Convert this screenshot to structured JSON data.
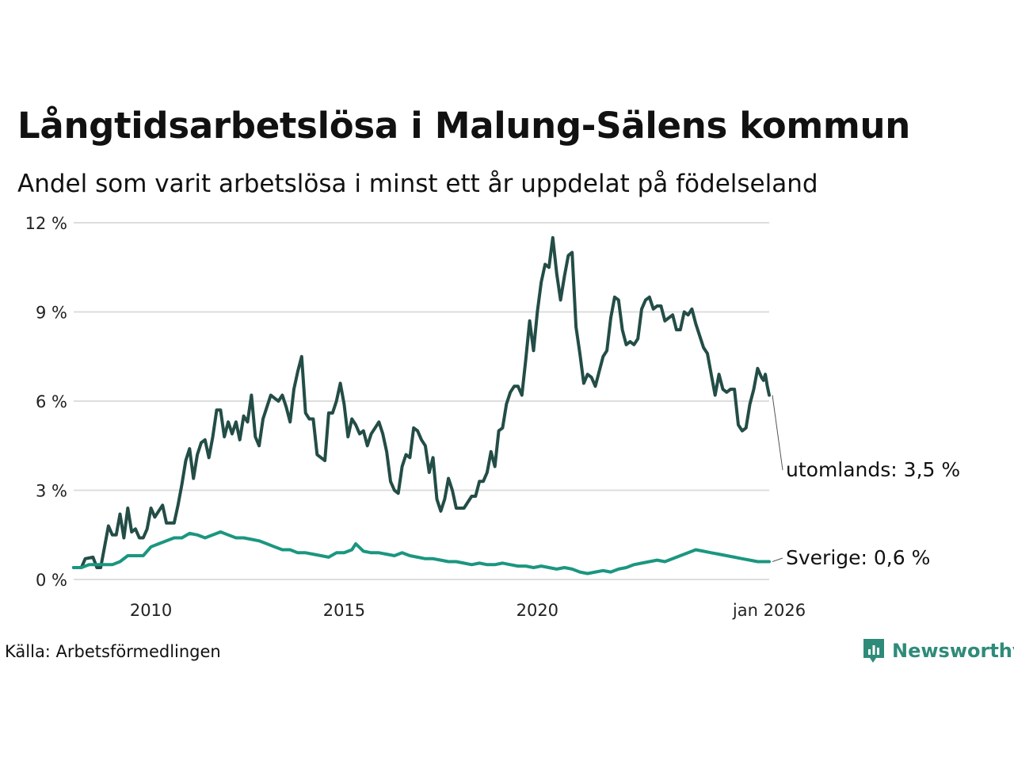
{
  "title": "Långtidsarbetslösa i Malung-Sälens kommun",
  "subtitle": "Andel som varit arbetslösa i minst ett år uppdelat på födelseland",
  "source": "Källa: Arbetsförmedlingen",
  "brand": {
    "name": "Newsworthy",
    "color": "#2e8b7a"
  },
  "chart_data": {
    "type": "line",
    "title": "Långtidsarbetslösa i Malung-Sälens kommun",
    "xlabel": "",
    "ylabel": "",
    "xlim": [
      2008.0,
      2026.0
    ],
    "ylim": [
      0,
      12
    ],
    "x_ticks": [
      2010,
      2015,
      2020,
      2026
    ],
    "x_tick_labels": [
      "2010",
      "2015",
      "2020",
      "jan 2026"
    ],
    "y_ticks": [
      0,
      3,
      6,
      9,
      12
    ],
    "y_tick_labels": [
      "0 %",
      "3 %",
      "6 %",
      "9 %",
      "12 %"
    ],
    "grid": true,
    "series": [
      {
        "name": "utomlands",
        "end_label": "utomlands: 3,5 %",
        "color": "#234d46",
        "points": [
          [
            2008.0,
            0.4
          ],
          [
            2008.2,
            0.4
          ],
          [
            2008.3,
            0.7
          ],
          [
            2008.5,
            0.75
          ],
          [
            2008.6,
            0.4
          ],
          [
            2008.7,
            0.4
          ],
          [
            2008.9,
            1.8
          ],
          [
            2009.0,
            1.5
          ],
          [
            2009.1,
            1.5
          ],
          [
            2009.2,
            2.2
          ],
          [
            2009.3,
            1.4
          ],
          [
            2009.4,
            2.4
          ],
          [
            2009.5,
            1.6
          ],
          [
            2009.6,
            1.7
          ],
          [
            2009.7,
            1.4
          ],
          [
            2009.8,
            1.4
          ],
          [
            2009.9,
            1.7
          ],
          [
            2010.0,
            2.4
          ],
          [
            2010.1,
            2.1
          ],
          [
            2010.3,
            2.5
          ],
          [
            2010.4,
            1.9
          ],
          [
            2010.6,
            1.9
          ],
          [
            2010.7,
            2.5
          ],
          [
            2010.8,
            3.2
          ],
          [
            2010.9,
            4.0
          ],
          [
            2011.0,
            4.4
          ],
          [
            2011.1,
            3.4
          ],
          [
            2011.2,
            4.2
          ],
          [
            2011.3,
            4.6
          ],
          [
            2011.4,
            4.7
          ],
          [
            2011.5,
            4.1
          ],
          [
            2011.6,
            4.8
          ],
          [
            2011.7,
            5.7
          ],
          [
            2011.8,
            5.7
          ],
          [
            2011.9,
            4.8
          ],
          [
            2012.0,
            5.3
          ],
          [
            2012.1,
            4.9
          ],
          [
            2012.2,
            5.3
          ],
          [
            2012.3,
            4.7
          ],
          [
            2012.4,
            5.5
          ],
          [
            2012.5,
            5.3
          ],
          [
            2012.6,
            6.2
          ],
          [
            2012.7,
            4.8
          ],
          [
            2012.8,
            4.5
          ],
          [
            2012.9,
            5.4
          ],
          [
            2013.0,
            5.8
          ],
          [
            2013.1,
            6.2
          ],
          [
            2013.2,
            6.1
          ],
          [
            2013.3,
            6.0
          ],
          [
            2013.4,
            6.2
          ],
          [
            2013.5,
            5.8
          ],
          [
            2013.6,
            5.3
          ],
          [
            2013.7,
            6.4
          ],
          [
            2013.8,
            7.0
          ],
          [
            2013.9,
            7.5
          ],
          [
            2014.0,
            5.6
          ],
          [
            2014.1,
            5.4
          ],
          [
            2014.2,
            5.4
          ],
          [
            2014.3,
            4.2
          ],
          [
            2014.4,
            4.1
          ],
          [
            2014.5,
            4.0
          ],
          [
            2014.6,
            5.6
          ],
          [
            2014.7,
            5.6
          ],
          [
            2014.8,
            6.0
          ],
          [
            2014.9,
            6.6
          ],
          [
            2015.0,
            5.9
          ],
          [
            2015.1,
            4.8
          ],
          [
            2015.2,
            5.4
          ],
          [
            2015.3,
            5.2
          ],
          [
            2015.4,
            4.9
          ],
          [
            2015.5,
            5.0
          ],
          [
            2015.6,
            4.5
          ],
          [
            2015.7,
            4.9
          ],
          [
            2015.8,
            5.1
          ],
          [
            2015.9,
            5.3
          ],
          [
            2016.0,
            4.9
          ],
          [
            2016.1,
            4.3
          ],
          [
            2016.2,
            3.3
          ],
          [
            2016.3,
            3.0
          ],
          [
            2016.4,
            2.9
          ],
          [
            2016.5,
            3.8
          ],
          [
            2016.6,
            4.2
          ],
          [
            2016.7,
            4.1
          ],
          [
            2016.8,
            5.1
          ],
          [
            2016.9,
            5.0
          ],
          [
            2017.0,
            4.7
          ],
          [
            2017.1,
            4.5
          ],
          [
            2017.2,
            3.6
          ],
          [
            2017.3,
            4.1
          ],
          [
            2017.4,
            2.7
          ],
          [
            2017.5,
            2.3
          ],
          [
            2017.6,
            2.7
          ],
          [
            2017.7,
            3.4
          ],
          [
            2017.8,
            3.0
          ],
          [
            2017.9,
            2.4
          ],
          [
            2018.0,
            2.4
          ],
          [
            2018.1,
            2.4
          ],
          [
            2018.3,
            2.8
          ],
          [
            2018.4,
            2.8
          ],
          [
            2018.5,
            3.3
          ],
          [
            2018.6,
            3.3
          ],
          [
            2018.7,
            3.6
          ],
          [
            2018.8,
            4.3
          ],
          [
            2018.9,
            3.8
          ],
          [
            2019.0,
            5.0
          ],
          [
            2019.1,
            5.1
          ],
          [
            2019.2,
            5.9
          ],
          [
            2019.3,
            6.3
          ],
          [
            2019.4,
            6.5
          ],
          [
            2019.5,
            6.5
          ],
          [
            2019.6,
            6.2
          ],
          [
            2019.7,
            7.4
          ],
          [
            2019.8,
            8.7
          ],
          [
            2019.9,
            7.7
          ],
          [
            2020.0,
            9.0
          ],
          [
            2020.1,
            10.0
          ],
          [
            2020.2,
            10.6
          ],
          [
            2020.3,
            10.5
          ],
          [
            2020.4,
            11.5
          ],
          [
            2020.5,
            10.3
          ],
          [
            2020.6,
            9.4
          ],
          [
            2020.7,
            10.2
          ],
          [
            2020.8,
            10.9
          ],
          [
            2020.9,
            11.0
          ],
          [
            2021.0,
            8.5
          ],
          [
            2021.1,
            7.6
          ],
          [
            2021.2,
            6.6
          ],
          [
            2021.3,
            6.9
          ],
          [
            2021.4,
            6.8
          ],
          [
            2021.5,
            6.5
          ],
          [
            2021.6,
            7.0
          ],
          [
            2021.7,
            7.5
          ],
          [
            2021.8,
            7.7
          ],
          [
            2021.9,
            8.8
          ],
          [
            2022.0,
            9.5
          ],
          [
            2022.1,
            9.4
          ],
          [
            2022.2,
            8.4
          ],
          [
            2022.3,
            7.9
          ],
          [
            2022.4,
            8.0
          ],
          [
            2022.5,
            7.9
          ],
          [
            2022.6,
            8.1
          ],
          [
            2022.7,
            9.1
          ],
          [
            2022.8,
            9.4
          ],
          [
            2022.9,
            9.5
          ],
          [
            2023.0,
            9.1
          ],
          [
            2023.1,
            9.2
          ],
          [
            2023.2,
            9.2
          ],
          [
            2023.3,
            8.7
          ],
          [
            2023.4,
            8.8
          ],
          [
            2023.5,
            8.9
          ],
          [
            2023.6,
            8.4
          ],
          [
            2023.7,
            8.4
          ],
          [
            2023.8,
            9.0
          ],
          [
            2023.9,
            8.9
          ],
          [
            2024.0,
            9.1
          ],
          [
            2024.1,
            8.6
          ],
          [
            2024.2,
            8.2
          ],
          [
            2024.3,
            7.8
          ],
          [
            2024.4,
            7.6
          ],
          [
            2024.5,
            6.9
          ],
          [
            2024.6,
            6.2
          ],
          [
            2024.7,
            6.9
          ],
          [
            2024.8,
            6.4
          ],
          [
            2024.9,
            6.3
          ],
          [
            2025.0,
            6.4
          ],
          [
            2025.1,
            6.4
          ],
          [
            2025.2,
            5.2
          ],
          [
            2025.3,
            5.0
          ],
          [
            2025.4,
            5.1
          ],
          [
            2025.5,
            5.9
          ],
          [
            2025.6,
            6.4
          ],
          [
            2025.7,
            7.1
          ],
          [
            2025.8,
            6.8
          ],
          [
            2025.85,
            6.7
          ],
          [
            2025.9,
            6.9
          ],
          [
            2025.95,
            6.5
          ],
          [
            2026.0,
            6.2
          ]
        ]
      },
      {
        "name": "Sverige",
        "end_label": "Sverige: 0,6 %",
        "color": "#1b9680",
        "points": [
          [
            2008.0,
            0.4
          ],
          [
            2008.2,
            0.4
          ],
          [
            2008.4,
            0.5
          ],
          [
            2008.6,
            0.5
          ],
          [
            2008.8,
            0.5
          ],
          [
            2009.0,
            0.5
          ],
          [
            2009.2,
            0.6
          ],
          [
            2009.4,
            0.8
          ],
          [
            2009.6,
            0.8
          ],
          [
            2009.8,
            0.8
          ],
          [
            2010.0,
            1.1
          ],
          [
            2010.2,
            1.2
          ],
          [
            2010.4,
            1.3
          ],
          [
            2010.6,
            1.4
          ],
          [
            2010.8,
            1.4
          ],
          [
            2011.0,
            1.55
          ],
          [
            2011.2,
            1.5
          ],
          [
            2011.4,
            1.4
          ],
          [
            2011.6,
            1.5
          ],
          [
            2011.8,
            1.6
          ],
          [
            2012.0,
            1.5
          ],
          [
            2012.2,
            1.4
          ],
          [
            2012.4,
            1.4
          ],
          [
            2012.6,
            1.35
          ],
          [
            2012.8,
            1.3
          ],
          [
            2013.0,
            1.2
          ],
          [
            2013.2,
            1.1
          ],
          [
            2013.4,
            1.0
          ],
          [
            2013.6,
            1.0
          ],
          [
            2013.8,
            0.9
          ],
          [
            2014.0,
            0.9
          ],
          [
            2014.2,
            0.85
          ],
          [
            2014.4,
            0.8
          ],
          [
            2014.6,
            0.75
          ],
          [
            2014.8,
            0.9
          ],
          [
            2015.0,
            0.9
          ],
          [
            2015.2,
            1.0
          ],
          [
            2015.3,
            1.2
          ],
          [
            2015.5,
            0.95
          ],
          [
            2015.7,
            0.9
          ],
          [
            2015.9,
            0.9
          ],
          [
            2016.1,
            0.85
          ],
          [
            2016.3,
            0.8
          ],
          [
            2016.5,
            0.9
          ],
          [
            2016.7,
            0.8
          ],
          [
            2016.9,
            0.75
          ],
          [
            2017.1,
            0.7
          ],
          [
            2017.3,
            0.7
          ],
          [
            2017.5,
            0.65
          ],
          [
            2017.7,
            0.6
          ],
          [
            2017.9,
            0.6
          ],
          [
            2018.1,
            0.55
          ],
          [
            2018.3,
            0.5
          ],
          [
            2018.5,
            0.55
          ],
          [
            2018.7,
            0.5
          ],
          [
            2018.9,
            0.5
          ],
          [
            2019.1,
            0.55
          ],
          [
            2019.3,
            0.5
          ],
          [
            2019.5,
            0.45
          ],
          [
            2019.7,
            0.45
          ],
          [
            2019.9,
            0.4
          ],
          [
            2020.1,
            0.45
          ],
          [
            2020.3,
            0.4
          ],
          [
            2020.5,
            0.35
          ],
          [
            2020.7,
            0.4
          ],
          [
            2020.9,
            0.35
          ],
          [
            2021.1,
            0.25
          ],
          [
            2021.3,
            0.2
          ],
          [
            2021.5,
            0.25
          ],
          [
            2021.7,
            0.3
          ],
          [
            2021.9,
            0.25
          ],
          [
            2022.1,
            0.35
          ],
          [
            2022.3,
            0.4
          ],
          [
            2022.5,
            0.5
          ],
          [
            2022.7,
            0.55
          ],
          [
            2022.9,
            0.6
          ],
          [
            2023.1,
            0.65
          ],
          [
            2023.3,
            0.6
          ],
          [
            2023.5,
            0.7
          ],
          [
            2023.7,
            0.8
          ],
          [
            2023.9,
            0.9
          ],
          [
            2024.1,
            1.0
          ],
          [
            2024.3,
            0.95
          ],
          [
            2024.5,
            0.9
          ],
          [
            2024.7,
            0.85
          ],
          [
            2024.9,
            0.8
          ],
          [
            2025.1,
            0.75
          ],
          [
            2025.3,
            0.7
          ],
          [
            2025.5,
            0.65
          ],
          [
            2025.7,
            0.6
          ],
          [
            2025.9,
            0.6
          ],
          [
            2026.0,
            0.6
          ]
        ]
      }
    ]
  }
}
